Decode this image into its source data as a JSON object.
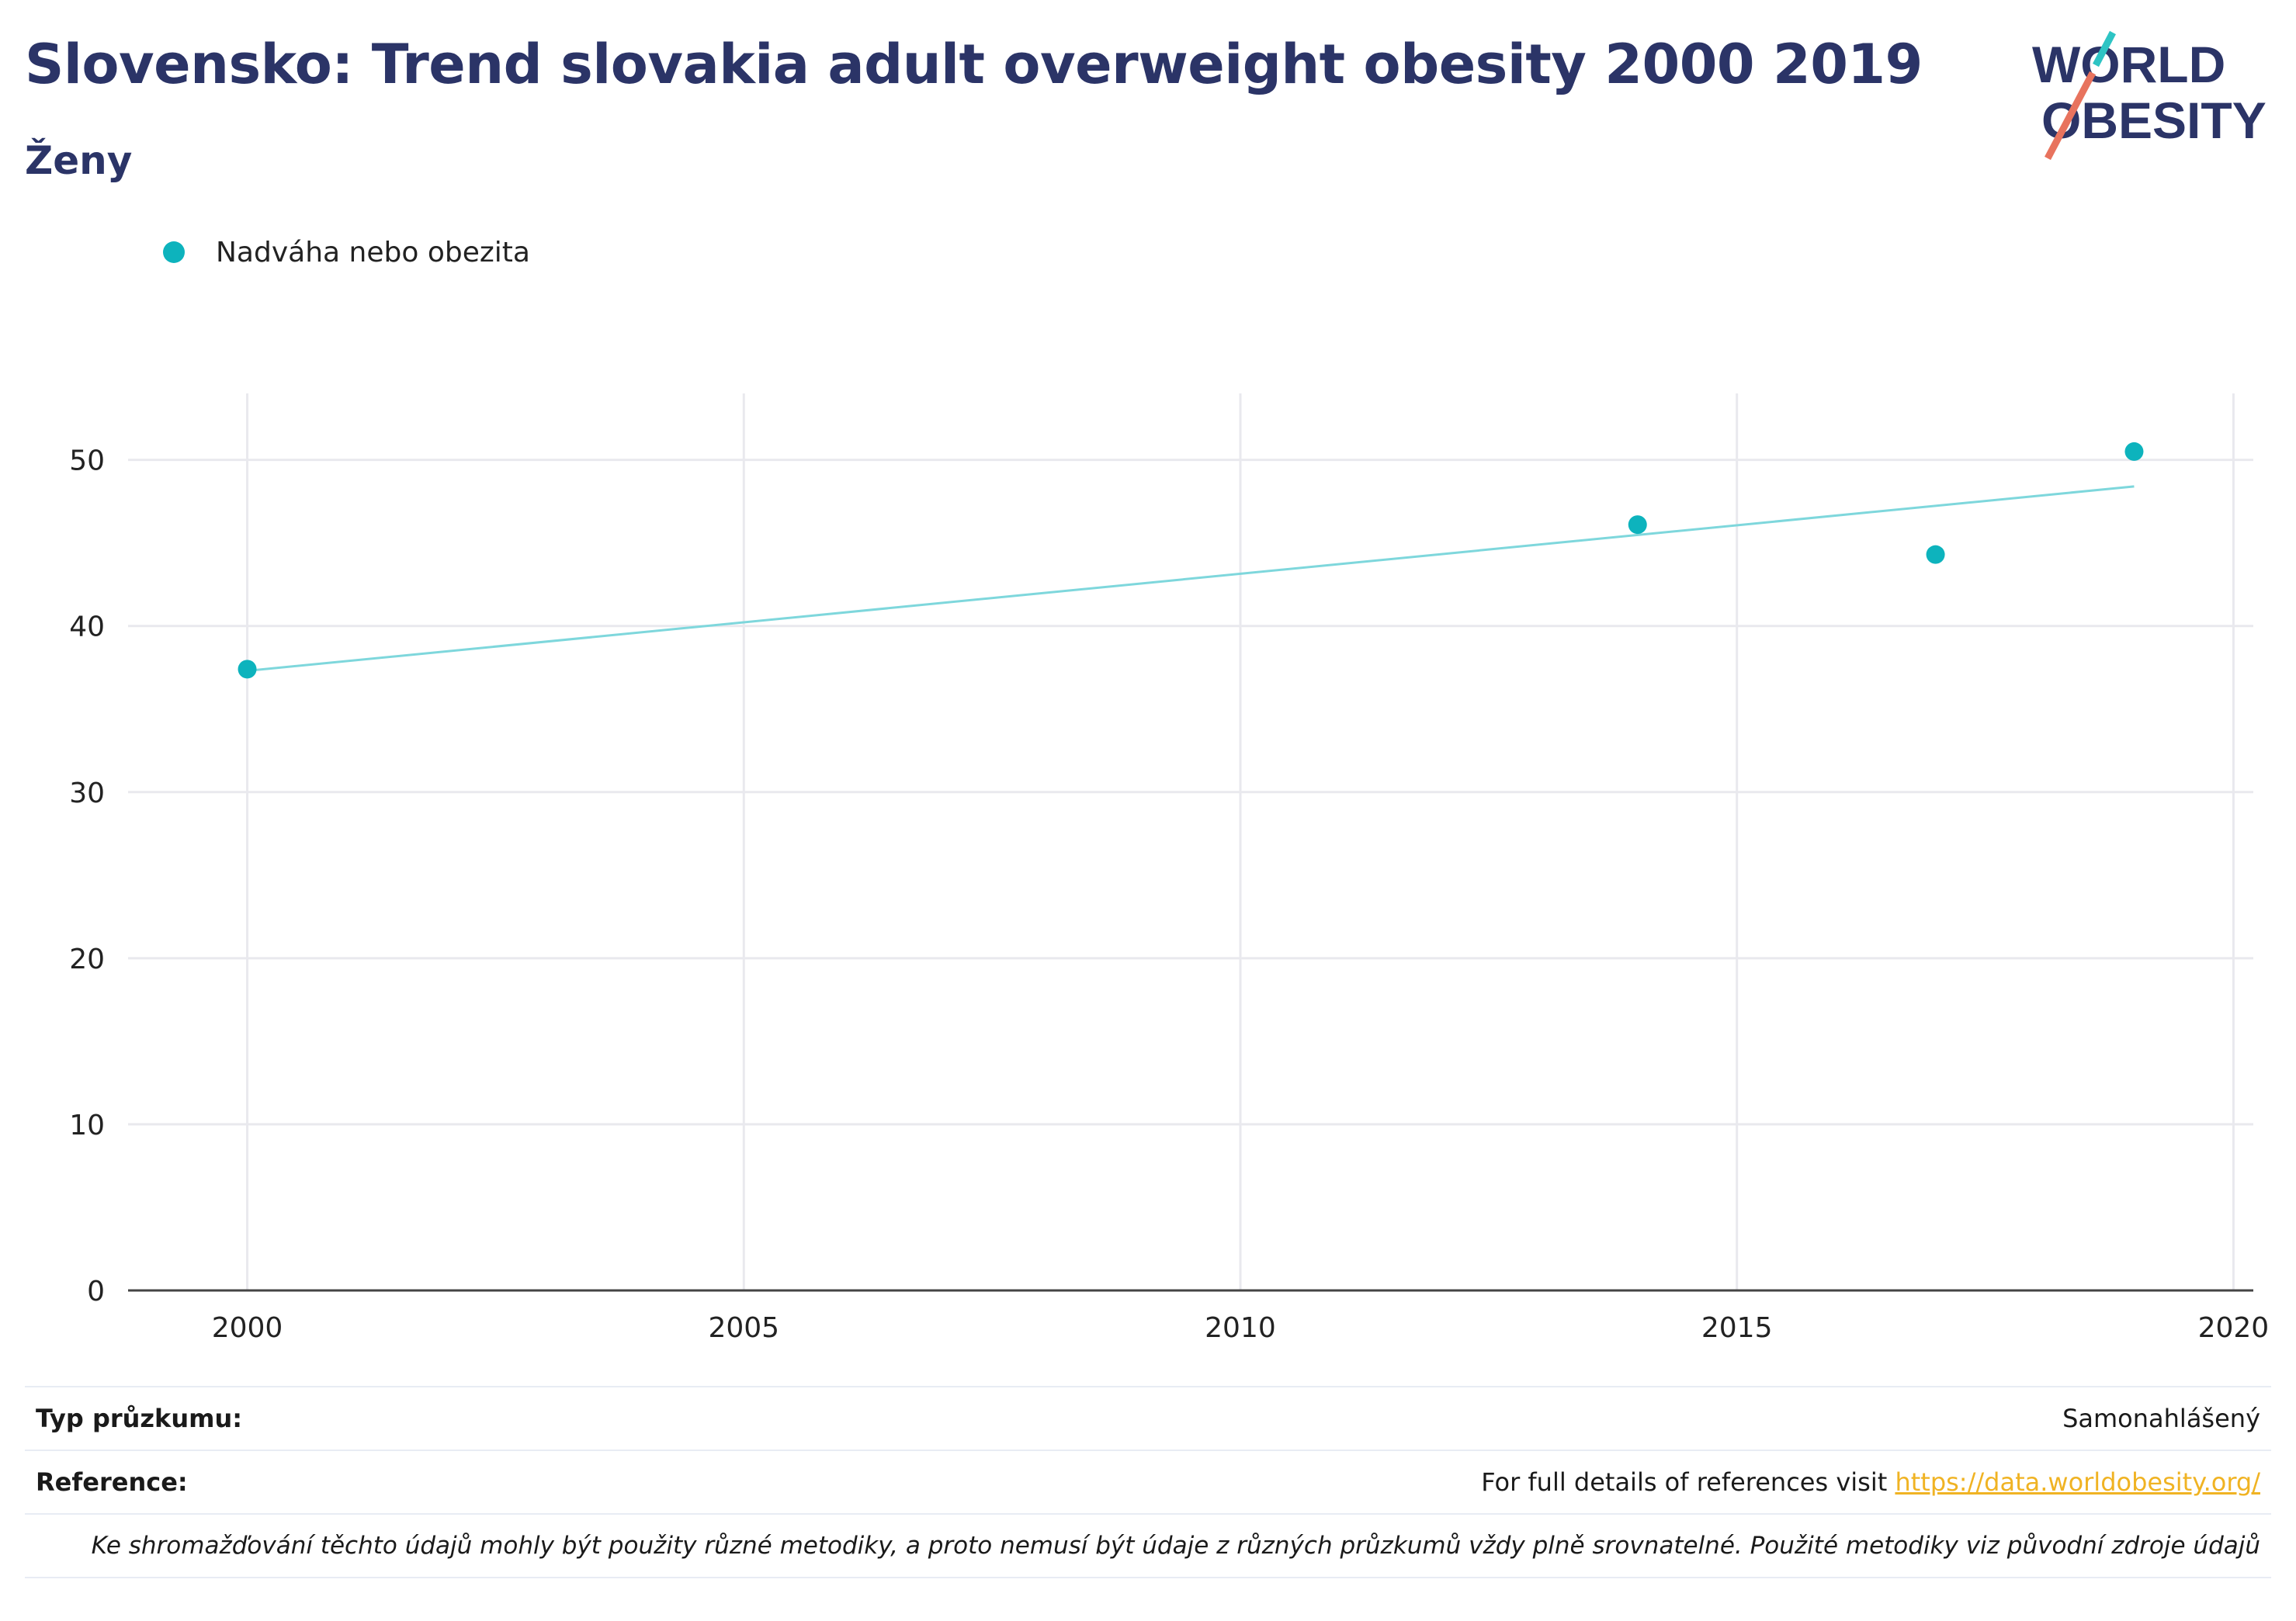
{
  "header": {
    "title": "Slovensko: Trend slovakia adult overweight obesity 2000 2019",
    "subtitle": "Ženy"
  },
  "logo": {
    "line1": "WORLD",
    "line2": "OBESITY"
  },
  "colors": {
    "title": "#2b3467",
    "series": "#0db3bd",
    "trendline": "#7ed7dc",
    "link": "#f0b323",
    "logo_teal": "#2ec4c4",
    "logo_coral": "#e8735e"
  },
  "chart_data": {
    "type": "scatter",
    "series": [
      {
        "name": "Nadváha nebo obezita",
        "x": [
          2000,
          2014,
          2017,
          2019
        ],
        "y": [
          37.4,
          46.1,
          44.3,
          50.5
        ]
      }
    ],
    "trendline": {
      "x": [
        2000,
        2019
      ],
      "y": [
        37.3,
        48.4
      ]
    },
    "xlim": [
      1998.8,
      2020.2
    ],
    "ylim": [
      0,
      54
    ],
    "xticks": [
      2000,
      2005,
      2010,
      2015,
      2020
    ],
    "yticks": [
      0,
      10,
      20,
      30,
      40,
      50
    ],
    "grid": true,
    "legend_position": "top-left",
    "xlabel": "",
    "ylabel": ""
  },
  "info": {
    "survey_type_label": "Typ průzkumu:",
    "survey_type_value": "Samonahlášený",
    "reference_label": "Reference:",
    "reference_text": "For full details of references visit ",
    "reference_link": "https://data.worldobesity.org/",
    "note": "Ke shromažďování těchto údajů mohly být použity různé metodiky, a proto nemusí být údaje z různých průzkumů vždy plně srovnatelné. Použité metodiky viz původní zdroje údajů"
  }
}
